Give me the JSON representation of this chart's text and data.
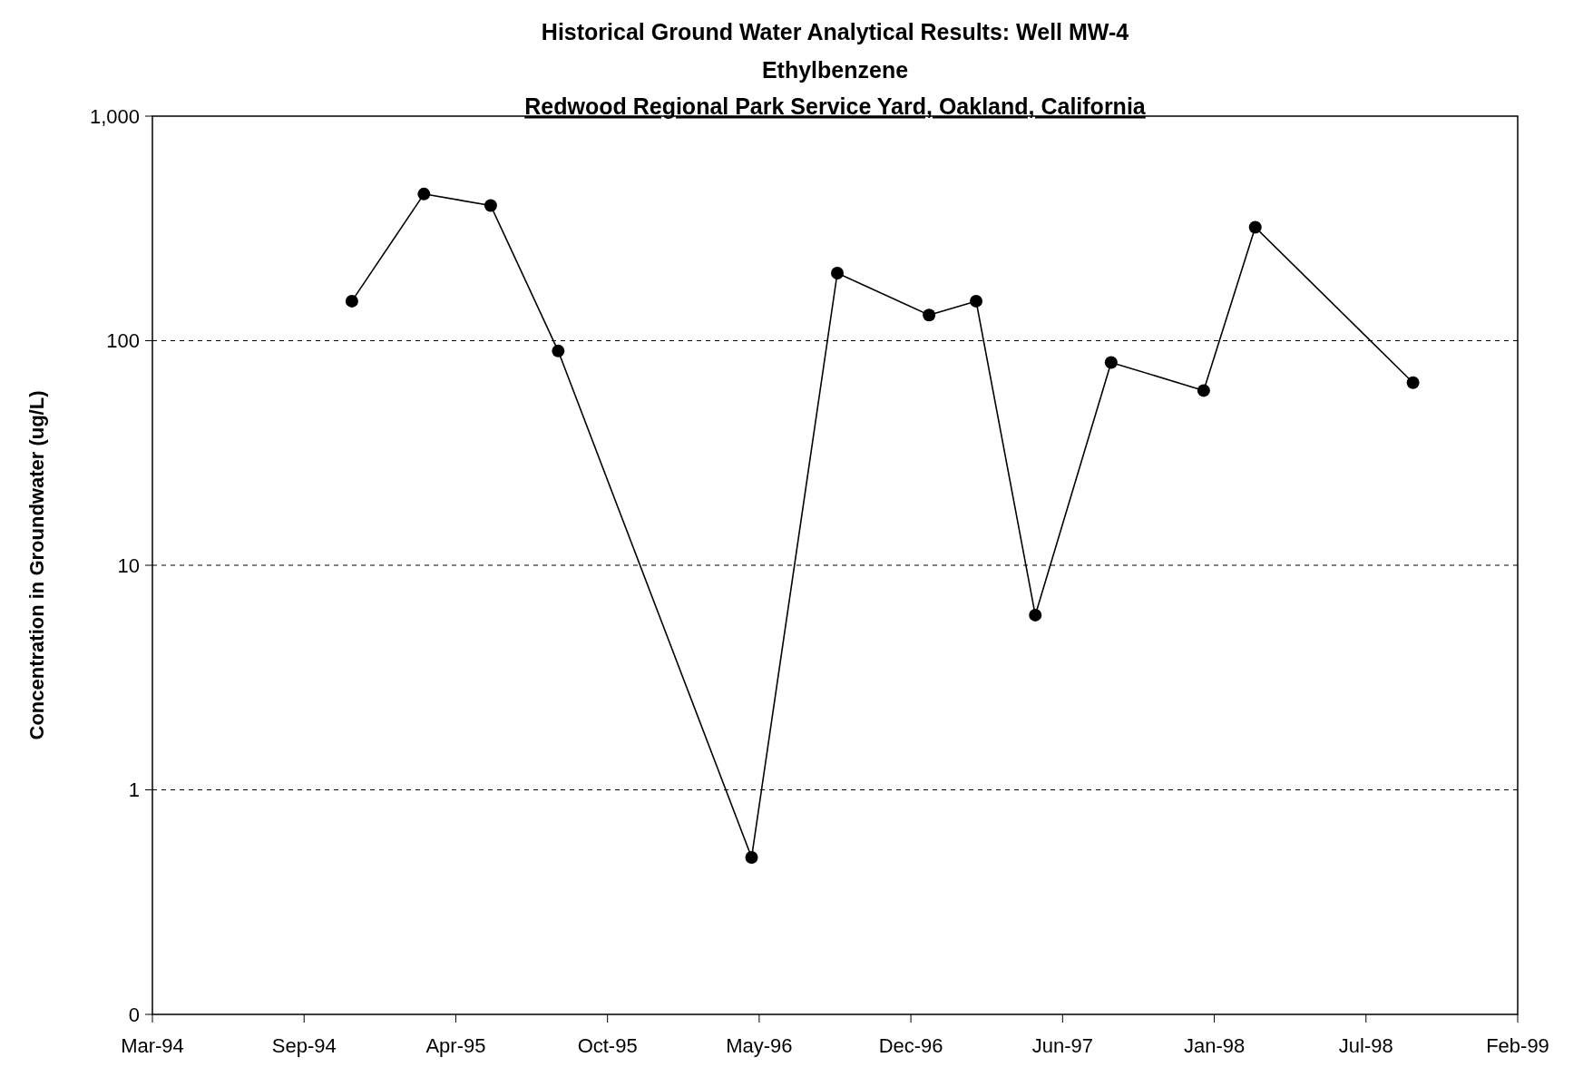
{
  "chart_data": {
    "type": "line",
    "title": "Historical Ground Water Analytical Results: Well MW-4",
    "subtitle": "Ethylbenzene\nRedwood Regional Park Service Yard, Oakland, California",
    "ylabel": "Concentration in Groundwater (ug/L)",
    "x": [
      "1994-11-28",
      "1995-03-03",
      "1995-05-30",
      "1995-08-27",
      "1996-05-08",
      "1996-08-29",
      "1996-12-28",
      "1997-02-28",
      "1997-05-17",
      "1997-08-25",
      "1997-12-25",
      "1998-03-03",
      "1998-09-27"
    ],
    "series": [
      {
        "color": "#000000",
        "values": [
          150,
          450,
          400,
          90,
          0.5,
          200,
          130,
          150,
          6,
          80,
          60,
          320,
          65
        ]
      }
    ],
    "log": "y",
    "ylim": [
      0.1,
      1000
    ],
    "yticks": [
      {
        "value": 0.1,
        "label": "0"
      },
      1,
      10,
      100,
      {
        "value": 1000,
        "label": "1,000"
      }
    ],
    "xlim": [
      "1994-03-10",
      "1999-02-12"
    ],
    "xticks": [
      {
        "value": "1994-03-10",
        "label": "Mar-94"
      },
      {
        "value": "1994-09-26",
        "label": "Sep-94"
      },
      {
        "value": "1995-04-14",
        "label": "Apr-95"
      },
      {
        "value": "1995-10-31",
        "label": "Oct-95"
      },
      {
        "value": "1996-05-18",
        "label": "May-96"
      },
      {
        "value": "1996-12-04",
        "label": "Dec-96"
      },
      {
        "value": "1997-06-22",
        "label": "Jun-97"
      },
      {
        "value": "1998-01-08",
        "label": "Jan-98"
      },
      {
        "value": "1998-07-27",
        "label": "Jul-98"
      },
      {
        "value": "1999-02-12",
        "label": "Feb-99"
      }
    ],
    "grid": "y",
    "line_style": "solid",
    "marker": "circle"
  }
}
